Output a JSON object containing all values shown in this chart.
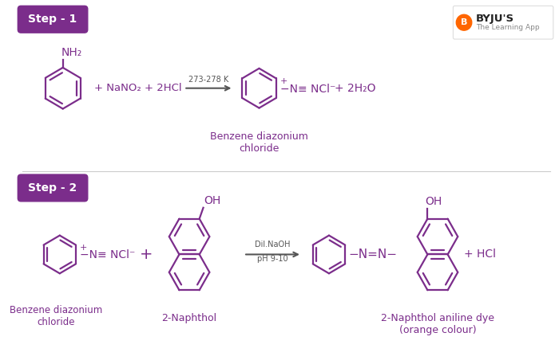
{
  "bg_color": "#ffffff",
  "purple": "#7B2D8B",
  "step_box_color": "#7B2D8B",
  "step_text_color": "#ffffff",
  "step1_label": "Step - 1",
  "step2_label": "Step - 2",
  "reagent1": "+ NaNO₂ + 2HCl",
  "condition1": "273-278 K",
  "benzene_diazonium": "Benzene diazonium\nchloride",
  "naphthol_label": "2-Naphthol",
  "dil_naoh": "Dil.NaOH",
  "ph": "pH 9-10",
  "product2_text": "+ HCl",
  "final_label": "2-Naphthol aniline dye\n(orange colour)",
  "benzo_label": "Benzene diazonium\nchloride",
  "nh2_label": "NH₂",
  "byju_name": "BYJU'S",
  "byju_sub": "The Learning App"
}
